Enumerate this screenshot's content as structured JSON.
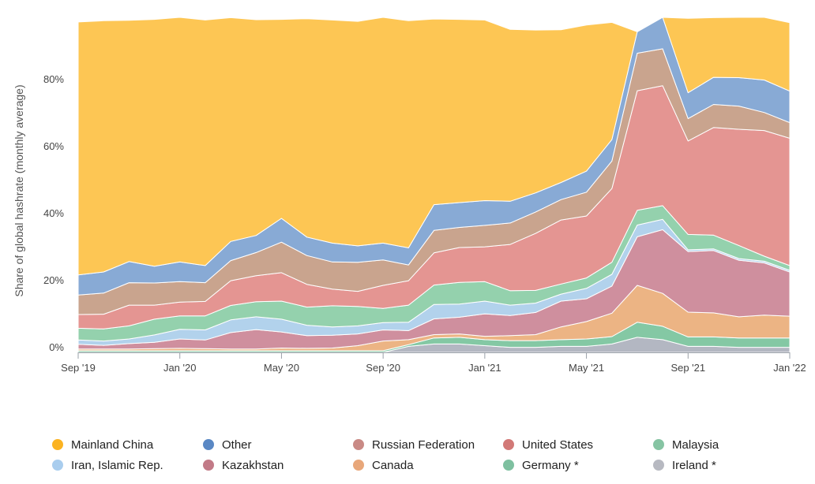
{
  "chart_data": {
    "type": "area",
    "stacked": true,
    "ylabel": "Share of global hashrate (monthly average)",
    "y_ticks": [
      "0%",
      "20%",
      "40%",
      "60%",
      "80%"
    ],
    "y_tick_values": [
      0,
      20,
      40,
      60,
      80
    ],
    "ylim": [
      0,
      100
    ],
    "x_ticks": [
      "Sep '19",
      "Jan '20",
      "May '20",
      "Sep '20",
      "Jan '21",
      "May '21",
      "Sep '21",
      "Jan '22"
    ],
    "x_tick_index": [
      0,
      4,
      8,
      12,
      16,
      20,
      24,
      28
    ],
    "x": [
      "2019-09",
      "2019-10",
      "2019-11",
      "2019-12",
      "2020-01",
      "2020-02",
      "2020-03",
      "2020-04",
      "2020-05",
      "2020-06",
      "2020-07",
      "2020-08",
      "2020-09",
      "2020-10",
      "2020-11",
      "2020-12",
      "2021-01",
      "2021-02",
      "2021-03",
      "2021-04",
      "2021-05",
      "2021-06",
      "2021-07",
      "2021-08",
      "2021-09",
      "2021-10",
      "2021-11",
      "2021-12",
      "2022-01"
    ],
    "legend_position": "bottom",
    "series": [
      {
        "name": "Ireland *",
        "color": "#b3b7c2",
        "values": [
          0,
          0,
          0,
          0,
          0,
          0,
          0,
          0,
          0,
          0,
          0,
          0,
          0,
          1.8,
          2.5,
          2.5,
          2.0,
          1.5,
          1.5,
          1.8,
          1.8,
          2.5,
          4.5,
          3.8,
          1.8,
          1.8,
          1.5,
          1.5,
          1.5
        ]
      },
      {
        "name": "Germany *",
        "color": "#84c8a4",
        "values": [
          0.5,
          0.5,
          0.5,
          0.5,
          0.5,
          0.5,
          0.5,
          0.5,
          0.5,
          0.5,
          0.5,
          0.5,
          0.5,
          0.5,
          1.8,
          2.0,
          1.8,
          2.0,
          2.0,
          2.0,
          2.2,
          2.2,
          4.5,
          4.0,
          2.8,
          2.8,
          2.8,
          2.8,
          2.8
        ]
      },
      {
        "name": "Canada",
        "color": "#ecb484",
        "values": [
          0.5,
          0.5,
          0.5,
          0.6,
          0.7,
          0.6,
          0.5,
          0.5,
          0.8,
          0.7,
          0.8,
          1.5,
          2.9,
          1.5,
          1.0,
          1.0,
          1.0,
          1.5,
          1.8,
          3.8,
          5.2,
          7.0,
          11.0,
          9.8,
          7.4,
          7.2,
          6.3,
          6.8,
          6.5
        ]
      },
      {
        "name": "Kazakhstan",
        "color": "#cf8f9e",
        "values": [
          1.4,
          1.1,
          1.6,
          1.9,
          2.8,
          2.6,
          4.9,
          5.8,
          4.8,
          3.8,
          3.8,
          3.5,
          3.3,
          2.7,
          4.7,
          5.0,
          6.7,
          6.0,
          6.6,
          7.7,
          6.8,
          8.1,
          14.5,
          19.0,
          18.1,
          18.6,
          16.9,
          15.6,
          13.2
        ]
      },
      {
        "name": "Iran, Islamic Rep.",
        "color": "#b2d2ec",
        "values": [
          1.3,
          1.3,
          1.4,
          2.2,
          2.9,
          3.0,
          3.8,
          3.8,
          3.8,
          3.1,
          2.5,
          2.4,
          2.2,
          2.5,
          4.3,
          3.9,
          3.8,
          3.1,
          2.8,
          2.1,
          3.1,
          3.5,
          3.5,
          3.1,
          0.5,
          0.5,
          0.5,
          0.5,
          0.5
        ]
      },
      {
        "name": "Malaysia",
        "color": "#94d1ad",
        "values": [
          3.5,
          3.6,
          3.9,
          4.7,
          4.0,
          4.2,
          4.3,
          4.5,
          5.4,
          5.4,
          6.3,
          5.8,
          4.2,
          5.1,
          5.8,
          6.5,
          5.8,
          4.3,
          3.8,
          3.0,
          3.1,
          3.6,
          4.4,
          4.1,
          4.6,
          4.1,
          3.9,
          1.5,
          1.4
        ]
      },
      {
        "name": "United States",
        "color": "#e49592",
        "values": [
          4.1,
          4.4,
          6.2,
          4.2,
          4.1,
          4.3,
          7.4,
          7.8,
          8.5,
          6.8,
          5.0,
          4.5,
          6.9,
          7.3,
          9.6,
          10.4,
          10.4,
          13.8,
          17.0,
          19.1,
          18.5,
          22.0,
          35.7,
          35.8,
          27.9,
          32.1,
          34.7,
          37.5,
          38.0
        ]
      },
      {
        "name": "Russian Federation",
        "color": "#c9a48e",
        "values": [
          5.8,
          6.3,
          6.7,
          6.6,
          6.1,
          5.6,
          6.0,
          6.9,
          9.1,
          8.6,
          8.1,
          8.7,
          7.6,
          4.7,
          6.7,
          6.0,
          6.4,
          6.4,
          6.4,
          6.1,
          7.1,
          8.2,
          11.2,
          11.0,
          6.7,
          6.9,
          6.9,
          5.4,
          4.7
        ]
      },
      {
        "name": "Other",
        "color": "#88aad5",
        "values": [
          6.0,
          6.3,
          6.3,
          5.0,
          5.9,
          5.1,
          5.7,
          5.1,
          7.1,
          5.5,
          5.6,
          4.9,
          5.0,
          5.1,
          7.7,
          7.4,
          7.4,
          6.5,
          5.7,
          5.1,
          6.3,
          6.4,
          6.4,
          9.5,
          7.7,
          8.1,
          8.5,
          9.7,
          9.4
        ]
      },
      {
        "name": "Mainland China",
        "color": "#fdc654",
        "values": [
          75.5,
          75.0,
          72.0,
          73.7,
          73.1,
          73.3,
          66.8,
          64.4,
          59.4,
          65.2,
          66.6,
          67.0,
          67.6,
          67.8,
          55.4,
          54.7,
          53.9,
          51.3,
          48.6,
          45.6,
          43.6,
          35.0,
          0,
          0,
          22.2,
          17.8,
          18.0,
          19.0,
          20.4
        ]
      }
    ],
    "legend": [
      {
        "name": "Mainland China",
        "color": "#fbb322"
      },
      {
        "name": "Other",
        "color": "#5a88c4"
      },
      {
        "name": "Russian Federation",
        "color": "#c98a85"
      },
      {
        "name": "United States",
        "color": "#d27977"
      },
      {
        "name": "Malaysia",
        "color": "#86c4a3"
      },
      {
        "name": "Iran, Islamic Rep.",
        "color": "#a9cdee"
      },
      {
        "name": "Kazakhstan",
        "color": "#c27a87"
      },
      {
        "name": "Canada",
        "color": "#e8a77a"
      },
      {
        "name": "Germany *",
        "color": "#7ec0a0"
      },
      {
        "name": "Ireland *",
        "color": "#b7b9c1"
      }
    ]
  }
}
